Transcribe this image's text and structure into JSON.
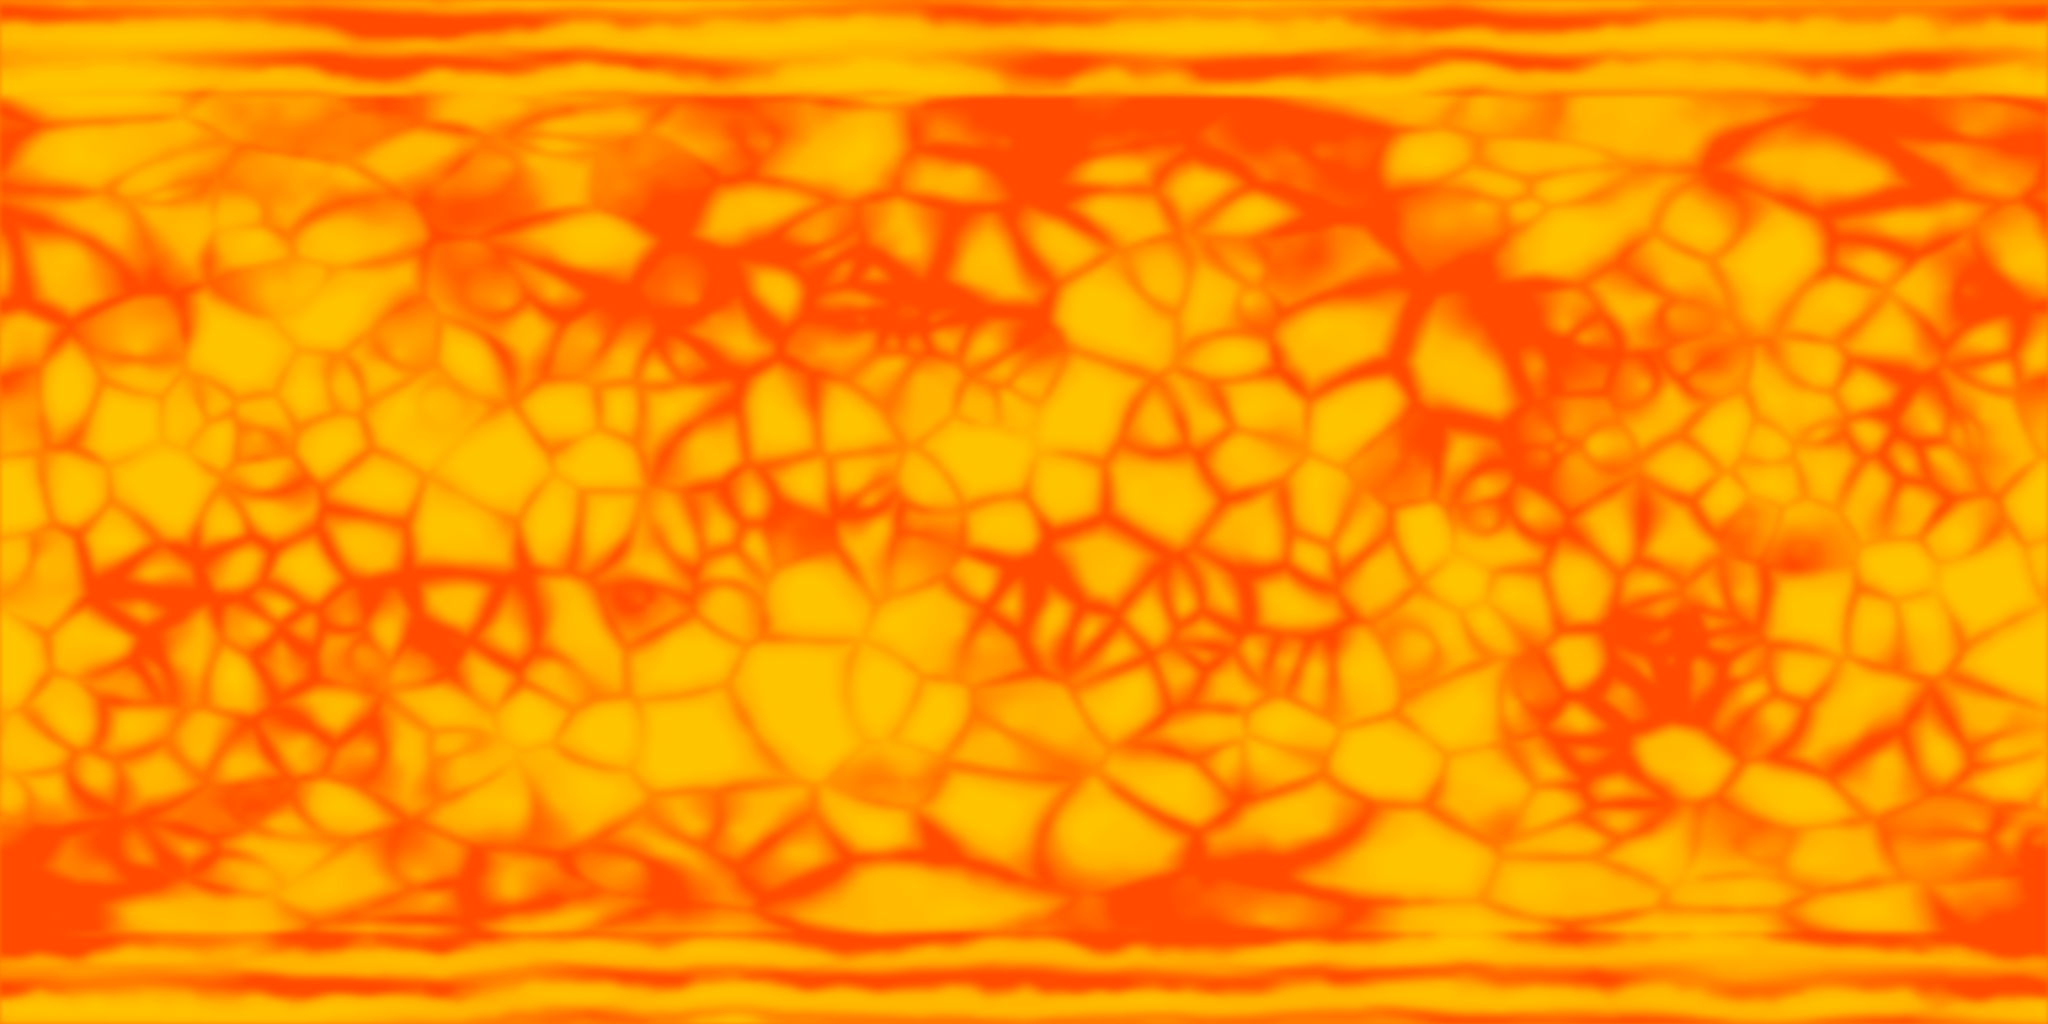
{
  "texture": {
    "kind": "equirectangular lava/plasma surface map",
    "palette": {
      "deep": "#ff4a00",
      "mid": "#ff7a00",
      "bright": "#ffb000",
      "peak": "#ffc400"
    }
  }
}
